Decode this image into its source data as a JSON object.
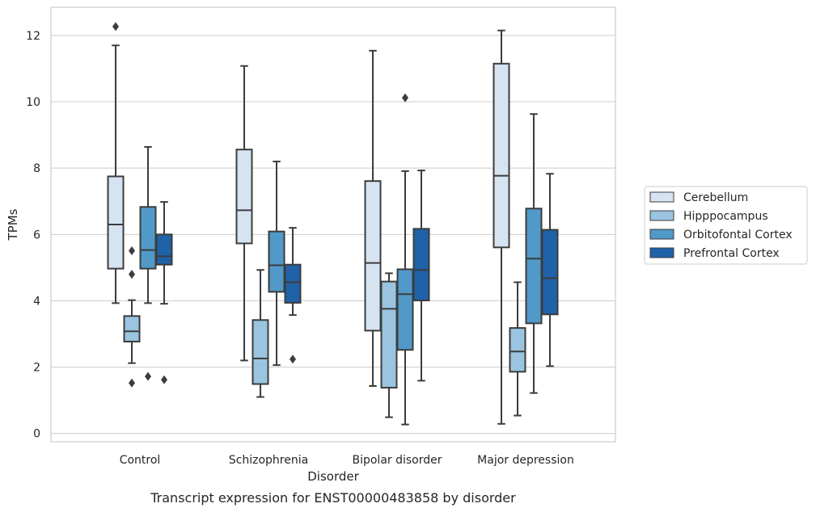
{
  "chart_data": {
    "type": "box",
    "title": "",
    "caption": "Transcript expression for ENST00000483858 by disorder",
    "xlabel": "Disorder",
    "ylabel": "TPMs",
    "ylim": [
      -0.25,
      12.85
    ],
    "yticks": [
      0,
      2,
      4,
      6,
      8,
      10,
      12
    ],
    "grid": "horizontal",
    "legend_position": "right",
    "categories": [
      "Control",
      "Schizophrenia",
      "Bipolar disorder",
      "Major depression"
    ],
    "series": [
      {
        "name": "Cerebellum",
        "color": "#d6e4f2",
        "boxes": [
          {
            "whislo": 3.93,
            "q1": 4.97,
            "med": 6.3,
            "q3": 7.75,
            "whishi": 11.7,
            "fliers": [
              12.27
            ]
          },
          {
            "whislo": 2.2,
            "q1": 5.73,
            "med": 6.73,
            "q3": 8.56,
            "whishi": 11.08,
            "fliers": []
          },
          {
            "whislo": 1.43,
            "q1": 3.1,
            "med": 5.14,
            "q3": 7.61,
            "whishi": 11.54,
            "fliers": []
          },
          {
            "whislo": 0.29,
            "q1": 5.61,
            "med": 7.77,
            "q3": 11.15,
            "whishi": 12.15,
            "fliers": []
          }
        ]
      },
      {
        "name": "Hipppocampus",
        "color": "#9ac4df",
        "boxes": [
          {
            "whislo": 2.12,
            "q1": 2.77,
            "med": 3.08,
            "q3": 3.54,
            "whishi": 4.02,
            "fliers": [
              5.51,
              4.8,
              1.52
            ]
          },
          {
            "whislo": 1.1,
            "q1": 1.49,
            "med": 2.26,
            "q3": 3.42,
            "whishi": 4.93,
            "fliers": []
          },
          {
            "whislo": 0.49,
            "q1": 1.38,
            "med": 3.76,
            "q3": 4.58,
            "whishi": 4.83,
            "fliers": []
          },
          {
            "whislo": 0.54,
            "q1": 1.86,
            "med": 2.47,
            "q3": 3.18,
            "whishi": 4.56,
            "fliers": []
          }
        ]
      },
      {
        "name": "Orbitofontal Cortex",
        "color": "#5199c8",
        "boxes": [
          {
            "whislo": 3.93,
            "q1": 4.97,
            "med": 5.53,
            "q3": 6.83,
            "whishi": 8.64,
            "fliers": [
              1.72
            ]
          },
          {
            "whislo": 2.06,
            "q1": 4.27,
            "med": 5.07,
            "q3": 6.09,
            "whishi": 8.2,
            "fliers": []
          },
          {
            "whislo": 0.27,
            "q1": 2.52,
            "med": 4.2,
            "q3": 4.95,
            "whishi": 7.91,
            "fliers": [
              10.12
            ]
          },
          {
            "whislo": 1.22,
            "q1": 3.32,
            "med": 5.27,
            "q3": 6.78,
            "whishi": 9.63,
            "fliers": []
          }
        ]
      },
      {
        "name": "Prefrontal Cortex",
        "color": "#1f62a8",
        "boxes": [
          {
            "whislo": 3.91,
            "q1": 5.09,
            "med": 5.34,
            "q3": 6.0,
            "whishi": 6.98,
            "fliers": [
              1.62
            ]
          },
          {
            "whislo": 3.57,
            "q1": 3.94,
            "med": 4.56,
            "q3": 5.09,
            "whishi": 6.2,
            "fliers": [
              2.24
            ]
          },
          {
            "whislo": 1.59,
            "q1": 4.01,
            "med": 4.93,
            "q3": 6.17,
            "whishi": 7.93,
            "fliers": []
          },
          {
            "whislo": 2.03,
            "q1": 3.59,
            "med": 4.68,
            "q3": 6.14,
            "whishi": 7.83,
            "fliers": []
          }
        ]
      }
    ]
  },
  "colors": {
    "grid": "#cccccc",
    "frame": "#cccccc",
    "box_edge": "#3c3c3c",
    "text": "#262626",
    "legend_border": "#cccccc"
  }
}
